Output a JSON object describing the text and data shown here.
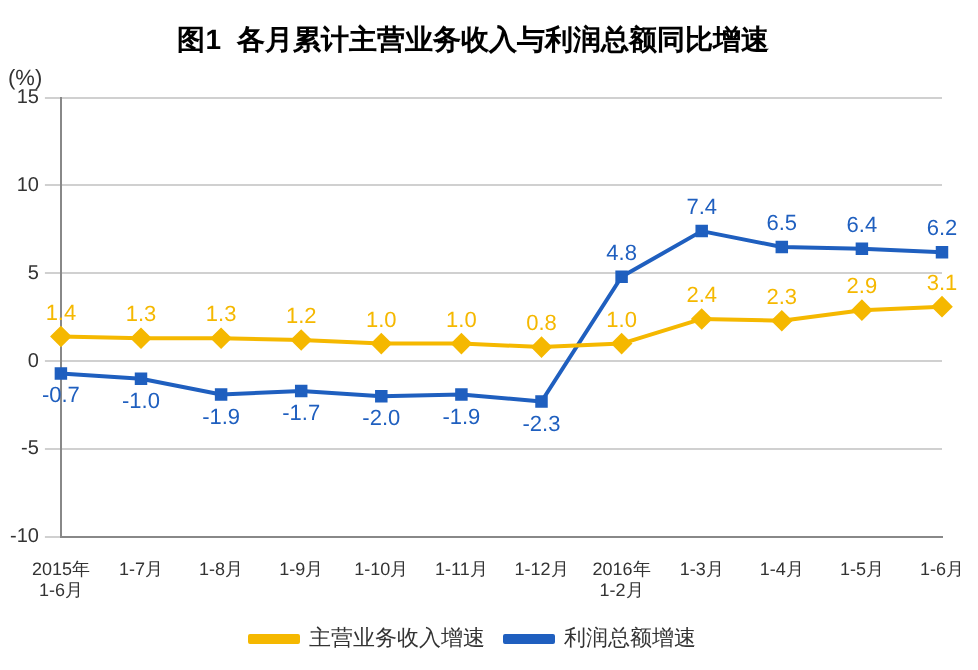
{
  "chart_data": {
    "type": "line",
    "title": "图1  各月累计主营业务收入与利润总额同比增速",
    "ylabel": "(%)",
    "categories": [
      "2015年\n1-6月",
      "1-7月",
      "1-8月",
      "1-9月",
      "1-10月",
      "1-11月",
      "1-12月",
      "2016年\n1-2月",
      "1-3月",
      "1-4月",
      "1-5月",
      "1-6月"
    ],
    "series": [
      {
        "name": "主营业务收入增速",
        "color": "#f5b800",
        "marker": "diamond",
        "values": [
          1.4,
          1.3,
          1.3,
          1.2,
          1.0,
          1.0,
          0.8,
          1.0,
          2.4,
          2.3,
          2.9,
          3.1
        ],
        "value_labels": [
          "1.4",
          "1.3",
          "1.3",
          "1.2",
          "1.0",
          "1.0",
          "0.8",
          "1.0",
          "2.4",
          "2.3",
          "2.9",
          "3.1"
        ]
      },
      {
        "name": "利润总额增速",
        "color": "#1f5fbf",
        "marker": "square",
        "values": [
          -0.7,
          -1.0,
          -1.9,
          -1.7,
          -2.0,
          -1.9,
          -2.3,
          4.8,
          7.4,
          6.5,
          6.4,
          6.2
        ],
        "value_labels": [
          "-0.7",
          "-1.0",
          "-1.9",
          "-1.7",
          "-2.0",
          "-1.9",
          "-2.3",
          "4.8",
          "7.4",
          "6.5",
          "6.4",
          "6.2"
        ]
      }
    ],
    "ylim": [
      -10,
      15
    ],
    "yticks": [
      -10,
      -5,
      0,
      5,
      10,
      15
    ],
    "grid": "y",
    "legend": "bottom",
    "line_style": "solid"
  }
}
